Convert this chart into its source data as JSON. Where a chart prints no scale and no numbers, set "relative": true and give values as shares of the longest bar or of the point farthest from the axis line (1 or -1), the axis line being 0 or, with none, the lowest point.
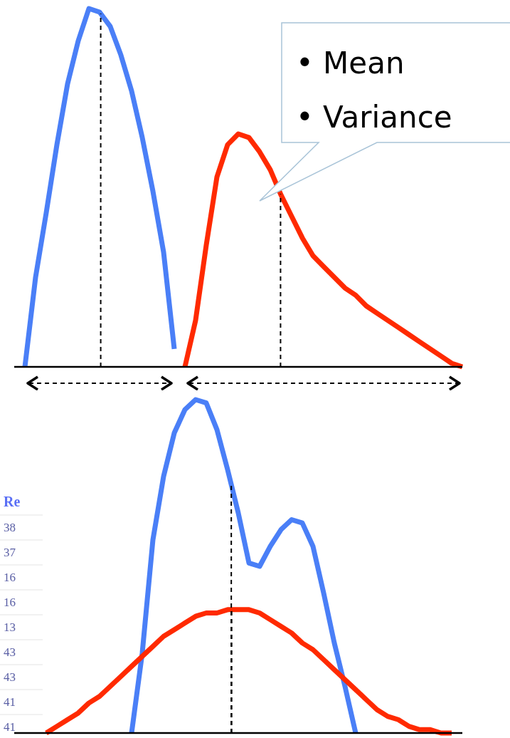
{
  "chart_data": [
    {
      "type": "line",
      "relative": true,
      "categories": [
        null,
        null,
        null,
        null,
        null,
        null,
        null,
        null,
        null,
        null,
        null,
        null,
        null,
        null,
        null,
        null,
        null,
        null,
        null,
        null,
        null,
        null,
        null,
        null,
        null,
        null,
        null,
        null,
        null,
        null,
        null,
        null,
        null,
        null,
        null,
        null,
        null,
        null,
        null,
        null,
        null,
        null,
        null
      ],
      "annotations": [
        "• Mean",
        "• Variance"
      ],
      "series": [
        {
          "color": "#4a7ff7",
          "values": [
            null,
            0,
            0.25,
            0.43,
            0.62,
            0.79,
            0.91,
            1,
            0.99,
            0.95,
            0.87,
            0.77,
            0.64,
            0.49,
            0.32,
            0.05,
            null,
            null,
            null,
            null,
            null,
            null,
            null,
            null,
            null,
            null,
            null,
            null,
            null,
            null,
            null,
            null,
            null,
            null,
            null,
            null,
            null,
            null,
            null,
            null,
            null,
            null,
            null
          ]
        },
        {
          "color": "#ff2a00",
          "values": [
            null,
            null,
            null,
            null,
            null,
            null,
            null,
            null,
            null,
            null,
            null,
            null,
            null,
            null,
            null,
            null,
            0,
            0.13,
            0.34,
            0.53,
            0.62,
            0.65,
            0.64,
            0.6,
            0.55,
            0.48,
            0.42,
            0.36,
            0.31,
            0.28,
            0.25,
            0.22,
            0.2,
            0.17,
            0.15,
            0.13,
            0.11,
            0.09,
            0.07,
            0.05,
            0.03,
            0.01,
            0
          ]
        }
      ]
    },
    {
      "type": "line",
      "relative": true,
      "categories": [
        null,
        null,
        null,
        null,
        null,
        null,
        null,
        null,
        null,
        null,
        null,
        null,
        null,
        null,
        null,
        null,
        null,
        null,
        null,
        null,
        null,
        null,
        null,
        null,
        null,
        null,
        null,
        null,
        null,
        null,
        null,
        null,
        null,
        null,
        null,
        null,
        null,
        null,
        null,
        null,
        null,
        null,
        null
      ],
      "annotations": [
        "Re",
        "38",
        "37",
        "16",
        "16",
        "13",
        "43",
        "43",
        "41",
        "41"
      ],
      "series": [
        {
          "color": "#4a7ff7",
          "values": [
            null,
            null,
            null,
            null,
            null,
            null,
            null,
            null,
            null,
            null,
            null,
            0,
            0.24,
            0.58,
            0.77,
            0.9,
            0.97,
            1,
            0.99,
            0.91,
            0.79,
            0.66,
            0.51,
            0.5,
            0.56,
            0.61,
            0.64,
            0.63,
            0.56,
            0.42,
            0.27,
            0.14,
            0,
            null,
            null,
            null,
            null,
            null,
            null,
            null,
            null,
            null,
            null
          ]
        },
        {
          "color": "#ff2a00",
          "values": [
            null,
            null,
            null,
            0,
            0.02,
            0.04,
            0.06,
            0.09,
            0.11,
            0.14,
            0.17,
            0.2,
            0.23,
            0.26,
            0.29,
            0.31,
            0.33,
            0.35,
            0.36,
            0.36,
            0.37,
            0.37,
            0.37,
            0.36,
            0.34,
            0.32,
            0.3,
            0.27,
            0.25,
            0.22,
            0.19,
            0.16,
            0.13,
            0.1,
            0.07,
            0.05,
            0.04,
            0.02,
            0.01,
            0.01,
            0,
            0,
            null
          ]
        }
      ]
    }
  ]
}
